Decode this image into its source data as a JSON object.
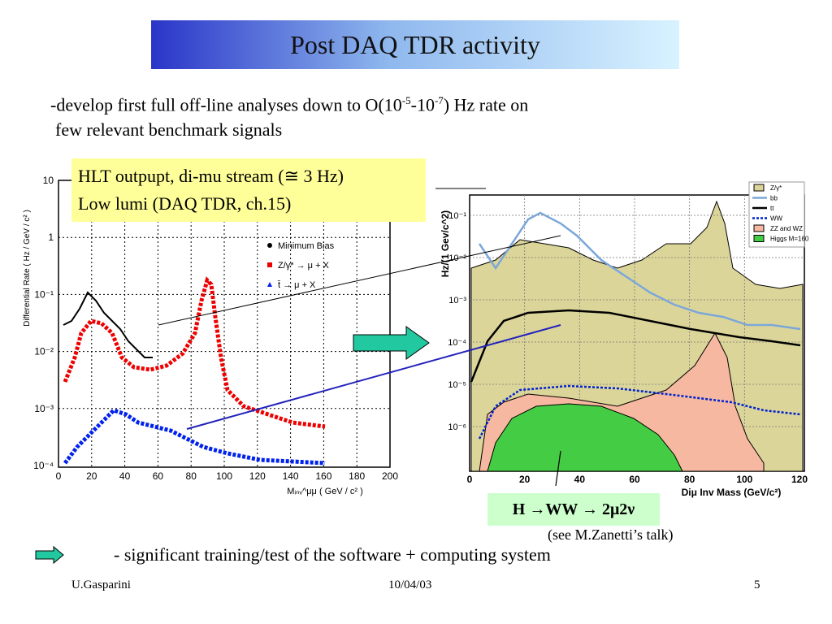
{
  "title": "Post DAQ TDR activity",
  "bullet1": {
    "parts": [
      "-develop first full off-line analyses down to O(10",
      "-5",
      "-10",
      "-7",
      ") Hz rate on"
    ],
    "line2": "few relevant benchmark signals"
  },
  "callout": [
    "HLT outpupt, di-mu stream (≅ 3 Hz)",
    "Low lumi (DAQ TDR, ch.15)"
  ],
  "left_plot": {
    "y_label": "Differential Rate ( Hz / GeV / c² )",
    "x_label": "Mᵢₙᵥ^μμ ( GeV / c² )",
    "xticks": [
      "0",
      "20",
      "40",
      "60",
      "80",
      "100",
      "120",
      "140",
      "160",
      "180",
      "200"
    ],
    "yticks": [
      "10",
      "1",
      "10⁻¹",
      "10⁻²",
      "10⁻³",
      "10⁻⁴"
    ],
    "legend": [
      "Minimum Bias",
      "Z/γ* → μ + X",
      "t̄ → μ + X"
    ]
  },
  "right_plot": {
    "y_label": "Hz/(1 Gev/c^2)",
    "x_label": "Diμ Inv Mass (GeV/c²)",
    "xticks": [
      "0",
      "20",
      "40",
      "60",
      "80",
      "100",
      "120"
    ],
    "yticks": [
      "10⁻¹",
      "10⁻²",
      "10⁻³",
      "10⁻⁴",
      "10⁻⁵",
      "10⁻⁶"
    ],
    "legend": [
      "Z/γ*",
      "bb",
      "tt",
      "WW",
      "ZZ and WZ",
      "Higgs M=160"
    ]
  },
  "process": "H →WW → 2μ2ν",
  "note": "(see M.Zanetti’s talk)",
  "bullet2": "- significant training/test of the software + computing system",
  "footer": {
    "author": "U.Gasparini",
    "date": "10/04/03",
    "page": "5"
  }
}
